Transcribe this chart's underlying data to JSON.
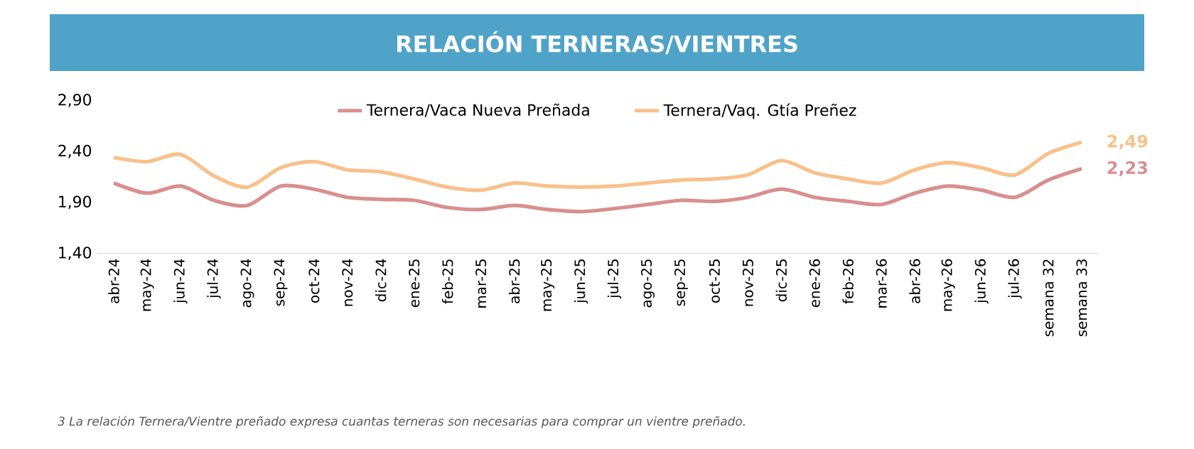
{
  "chart_data": {
    "type": "line",
    "title": "RELACIÓN TERNERAS/VIENTRES",
    "categories": [
      "abr-24",
      "may-24",
      "jun-24",
      "jul-24",
      "ago-24",
      "sep-24",
      "oct-24",
      "nov-24",
      "dic-24",
      "ene-25",
      "feb-25",
      "mar-25",
      "abr-25",
      "may-25",
      "jun-25",
      "jul-25",
      "ago-25",
      "sep-25",
      "oct-25",
      "nov-25",
      "dic-25",
      "ene-26",
      "feb-26",
      "mar-26",
      "abr-26",
      "may-26",
      "jun-26",
      "jul-26",
      "semana 32",
      "semana 33"
    ],
    "series": [
      {
        "name": "Ternera/Vaca Nueva Preñada",
        "color": "#d98f8f",
        "values": [
          2.09,
          1.99,
          2.06,
          1.92,
          1.87,
          2.06,
          2.03,
          1.95,
          1.93,
          1.92,
          1.85,
          1.83,
          1.87,
          1.83,
          1.81,
          1.84,
          1.88,
          1.92,
          1.91,
          1.95,
          2.03,
          1.95,
          1.91,
          1.88,
          1.99,
          2.06,
          2.02,
          1.95,
          2.12,
          2.23
        ],
        "value_labels": [
          null,
          null,
          null,
          null,
          null,
          null,
          null,
          null,
          null,
          null,
          null,
          null,
          null,
          null,
          null,
          null,
          null,
          null,
          null,
          null,
          null,
          null,
          null,
          null,
          null,
          null,
          null,
          null,
          null,
          "2,23"
        ]
      },
      {
        "name": "Ternera/Vaq. Gtía Preñez",
        "color": "#f9c08a",
        "values": [
          2.34,
          2.3,
          2.37,
          2.16,
          2.05,
          2.24,
          2.3,
          2.22,
          2.2,
          2.13,
          2.05,
          2.02,
          2.09,
          2.06,
          2.05,
          2.06,
          2.09,
          2.12,
          2.13,
          2.17,
          2.31,
          2.19,
          2.13,
          2.09,
          2.22,
          2.29,
          2.24,
          2.17,
          2.38,
          2.49
        ],
        "value_labels": [
          null,
          null,
          null,
          null,
          null,
          null,
          null,
          null,
          null,
          null,
          null,
          null,
          null,
          null,
          null,
          null,
          null,
          null,
          null,
          null,
          null,
          null,
          null,
          null,
          null,
          null,
          null,
          null,
          null,
          "2,49"
        ]
      }
    ],
    "ylim": [
      1.4,
      2.9
    ],
    "yticks": [
      {
        "value": 1.4,
        "label": "1,40"
      },
      {
        "value": 1.9,
        "label": "1,90"
      },
      {
        "value": 2.4,
        "label": "2,40"
      },
      {
        "value": 2.9,
        "label": "2,90"
      }
    ],
    "legend": "top",
    "annotations": [
      "3 La relación Ternera/Vientre preñado expresa cuantas terneras son necesarias para comprar un vientre preñado."
    ]
  }
}
